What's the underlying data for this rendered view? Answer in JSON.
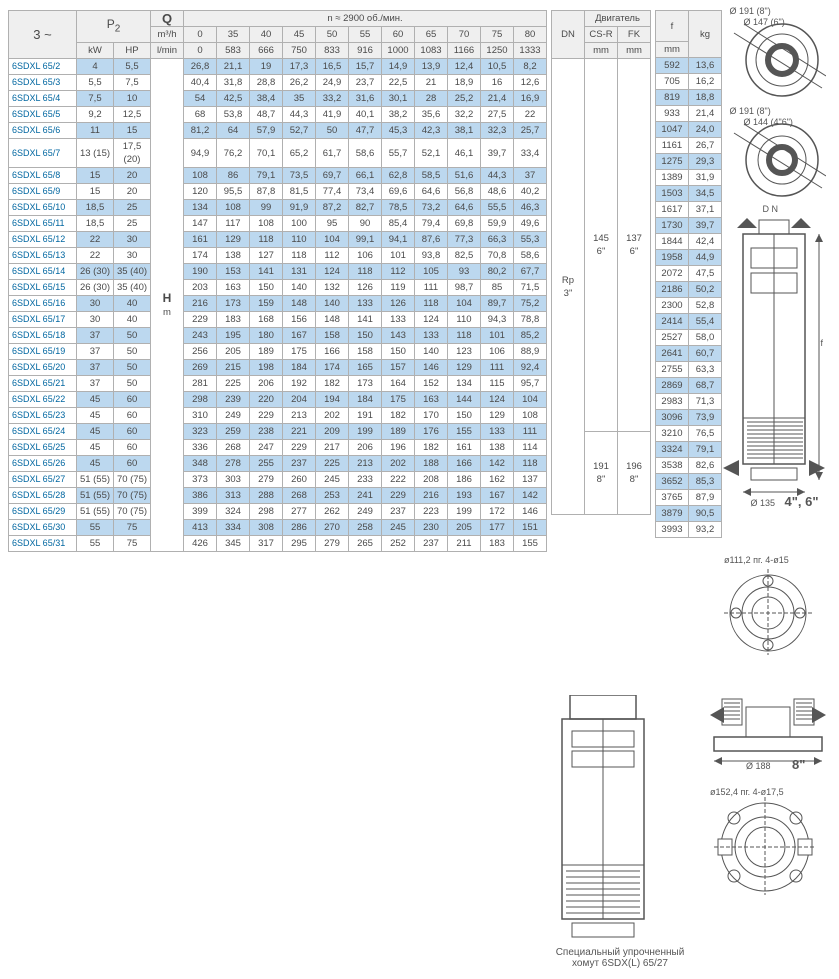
{
  "header": {
    "phase_label": "3 ~",
    "p2_label": "P",
    "p2_sub": "2",
    "q_label": "Q",
    "q_unit": "m³/h",
    "q_unit2": "l/min",
    "kw_label": "kW",
    "hp_label": "HP",
    "n_label": "n ≈ 2900 об./мин.",
    "h_label": "H",
    "h_unit": "m",
    "dn_label": "DN",
    "motor_label": "Двигатель",
    "csr_label": "CS-R",
    "fk_label": "FK",
    "f_label": "f",
    "mm": "mm",
    "kg": "kg"
  },
  "q_header": [
    "0",
    "35",
    "40",
    "45",
    "50",
    "55",
    "60",
    "65",
    "70",
    "75",
    "80"
  ],
  "q_header_lmin": [
    "0",
    "583",
    "666",
    "750",
    "833",
    "916",
    "1000",
    "1083",
    "1166",
    "1250",
    "1333"
  ],
  "models": [
    "6SDXL 65/2",
    "6SDXL 65/3",
    "6SDXL 65/4",
    "6SDXL 65/5",
    "6SDXL 65/6",
    "6SDXL 65/7",
    "6SDXL 65/8",
    "6SDXL 65/9",
    "6SDXL 65/10",
    "6SDXL 65/11",
    "6SDXL 65/12",
    "6SDXL 65/13",
    "6SDXL 65/14",
    "6SDXL 65/15",
    "6SDXL 65/16",
    "6SDXL 65/17",
    "6SDXL 65/18",
    "6SDXL 65/19",
    "6SDXL 65/20",
    "6SDXL 65/21",
    "6SDXL 65/22",
    "6SDXL 65/23",
    "6SDXL 65/24",
    "6SDXL 65/25",
    "6SDXL 65/26",
    "6SDXL 65/27",
    "6SDXL 65/28",
    "6SDXL 65/29",
    "6SDXL 65/30",
    "6SDXL 65/31"
  ],
  "kw": [
    "4",
    "5,5",
    "7,5",
    "9,2",
    "11",
    "13 (15)",
    "15",
    "15",
    "18,5",
    "18,5",
    "22",
    "22",
    "26 (30)",
    "26 (30)",
    "30",
    "30",
    "37",
    "37",
    "37",
    "37",
    "45",
    "45",
    "45",
    "45",
    "45",
    "51 (55)",
    "51 (55)",
    "51 (55)",
    "55",
    "55"
  ],
  "hp": [
    "5,5",
    "7,5",
    "10",
    "12,5",
    "15",
    "17,5 (20)",
    "20",
    "20",
    "25",
    "25",
    "30",
    "30",
    "35 (40)",
    "35 (40)",
    "40",
    "40",
    "50",
    "50",
    "50",
    "50",
    "60",
    "60",
    "60",
    "60",
    "60",
    "70 (75)",
    "70 (75)",
    "70 (75)",
    "75",
    "75"
  ],
  "h_rows": [
    [
      "26,8",
      "21,1",
      "19",
      "17,3",
      "16,5",
      "15,7",
      "14,9",
      "13,9",
      "12,4",
      "10,5",
      "8,2"
    ],
    [
      "40,4",
      "31,8",
      "28,8",
      "26,2",
      "24,9",
      "23,7",
      "22,5",
      "21",
      "18,9",
      "16",
      "12,6"
    ],
    [
      "54",
      "42,5",
      "38,4",
      "35",
      "33,2",
      "31,6",
      "30,1",
      "28",
      "25,2",
      "21,4",
      "16,9"
    ],
    [
      "68",
      "53,8",
      "48,7",
      "44,3",
      "41,9",
      "40,1",
      "38,2",
      "35,6",
      "32,2",
      "27,5",
      "22"
    ],
    [
      "81,2",
      "64",
      "57,9",
      "52,7",
      "50",
      "47,7",
      "45,3",
      "42,3",
      "38,1",
      "32,3",
      "25,7"
    ],
    [
      "94,9",
      "76,2",
      "70,1",
      "65,2",
      "61,7",
      "58,6",
      "55,7",
      "52,1",
      "46,1",
      "39,7",
      "33,4"
    ],
    [
      "108",
      "86",
      "79,1",
      "73,5",
      "69,7",
      "66,1",
      "62,8",
      "58,5",
      "51,6",
      "44,3",
      "37"
    ],
    [
      "120",
      "95,5",
      "87,8",
      "81,5",
      "77,4",
      "73,4",
      "69,6",
      "64,6",
      "56,8",
      "48,6",
      "40,2"
    ],
    [
      "134",
      "108",
      "99",
      "91,9",
      "87,2",
      "82,7",
      "78,5",
      "73,2",
      "64,6",
      "55,5",
      "46,3"
    ],
    [
      "147",
      "117",
      "108",
      "100",
      "95",
      "90",
      "85,4",
      "79,4",
      "69,8",
      "59,9",
      "49,6"
    ],
    [
      "161",
      "129",
      "118",
      "110",
      "104",
      "99,1",
      "94,1",
      "87,6",
      "77,3",
      "66,3",
      "55,3"
    ],
    [
      "174",
      "138",
      "127",
      "118",
      "112",
      "106",
      "101",
      "93,8",
      "82,5",
      "70,8",
      "58,6"
    ],
    [
      "190",
      "153",
      "141",
      "131",
      "124",
      "118",
      "112",
      "105",
      "93",
      "80,2",
      "67,7"
    ],
    [
      "203",
      "163",
      "150",
      "140",
      "132",
      "126",
      "119",
      "111",
      "98,7",
      "85",
      "71,5"
    ],
    [
      "216",
      "173",
      "159",
      "148",
      "140",
      "133",
      "126",
      "118",
      "104",
      "89,7",
      "75,2"
    ],
    [
      "229",
      "183",
      "168",
      "156",
      "148",
      "141",
      "133",
      "124",
      "110",
      "94,3",
      "78,8"
    ],
    [
      "243",
      "195",
      "180",
      "167",
      "158",
      "150",
      "143",
      "133",
      "118",
      "101",
      "85,2"
    ],
    [
      "256",
      "205",
      "189",
      "175",
      "166",
      "158",
      "150",
      "140",
      "123",
      "106",
      "88,9"
    ],
    [
      "269",
      "215",
      "198",
      "184",
      "174",
      "165",
      "157",
      "146",
      "129",
      "111",
      "92,4"
    ],
    [
      "281",
      "225",
      "206",
      "192",
      "182",
      "173",
      "164",
      "152",
      "134",
      "115",
      "95,7"
    ],
    [
      "298",
      "239",
      "220",
      "204",
      "194",
      "184",
      "175",
      "163",
      "144",
      "124",
      "104"
    ],
    [
      "310",
      "249",
      "229",
      "213",
      "202",
      "191",
      "182",
      "170",
      "150",
      "129",
      "108"
    ],
    [
      "323",
      "259",
      "238",
      "221",
      "209",
      "199",
      "189",
      "176",
      "155",
      "133",
      "111"
    ],
    [
      "336",
      "268",
      "247",
      "229",
      "217",
      "206",
      "196",
      "182",
      "161",
      "138",
      "114"
    ],
    [
      "348",
      "278",
      "255",
      "237",
      "225",
      "213",
      "202",
      "188",
      "166",
      "142",
      "118"
    ],
    [
      "373",
      "303",
      "279",
      "260",
      "245",
      "233",
      "222",
      "208",
      "186",
      "162",
      "137"
    ],
    [
      "386",
      "313",
      "288",
      "268",
      "253",
      "241",
      "229",
      "216",
      "193",
      "167",
      "142"
    ],
    [
      "399",
      "324",
      "298",
      "277",
      "262",
      "249",
      "237",
      "223",
      "199",
      "172",
      "146"
    ],
    [
      "413",
      "334",
      "308",
      "286",
      "270",
      "258",
      "245",
      "230",
      "205",
      "177",
      "151"
    ],
    [
      "426",
      "345",
      "317",
      "295",
      "279",
      "265",
      "252",
      "237",
      "211",
      "183",
      "155"
    ]
  ],
  "f_mm": [
    "592",
    "705",
    "819",
    "933",
    "1047",
    "1161",
    "1275",
    "1389",
    "1503",
    "1617",
    "1730",
    "1844",
    "1958",
    "2072",
    "2186",
    "2300",
    "2414",
    "2527",
    "2641",
    "2755",
    "2869",
    "2983",
    "3096",
    "3210",
    "3324",
    "3538",
    "3652",
    "3765",
    "3879",
    "3993"
  ],
  "kg_col": [
    "13,6",
    "16,2",
    "18,8",
    "21,4",
    "24,0",
    "26,7",
    "29,3",
    "31,9",
    "34,5",
    "37,1",
    "39,7",
    "42,4",
    "44,9",
    "47,5",
    "50,2",
    "52,8",
    "55,4",
    "58,0",
    "60,7",
    "63,3",
    "68,7",
    "71,3",
    "73,9",
    "76,5",
    "79,1",
    "82,6",
    "85,3",
    "87,9",
    "90,5",
    "93,2"
  ],
  "dn_block_top": {
    "csr": "145",
    "fk": "137",
    "inch": "6\"",
    "fk_inch": "6\""
  },
  "dn_block_bot": {
    "csr": "191",
    "fk": "196",
    "inch": "8\"",
    "fk_inch": "8\""
  },
  "dn_label": "Rp\n3\"",
  "dims": {
    "d191": "Ø 191 (8\")",
    "d147": "Ø 147 (6\")",
    "d144": "Ø 144 (4\"6\")",
    "dn": "D N",
    "f": "f",
    "d135": "Ø 135",
    "inch46": "4\", 6\"",
    "d1112": "ø111,2  пг. 4-ø15",
    "d188": "Ø 188",
    "inch8": "8\"",
    "d1524": "ø152,4   пг. 4-ø17,5"
  },
  "caption": "Специальный упрочненный\nхомут 6SDX(L) 65/27",
  "colors": {
    "stripe": "#bcd8ef",
    "border": "#b0b0b0",
    "model_text": "#0066a0"
  }
}
